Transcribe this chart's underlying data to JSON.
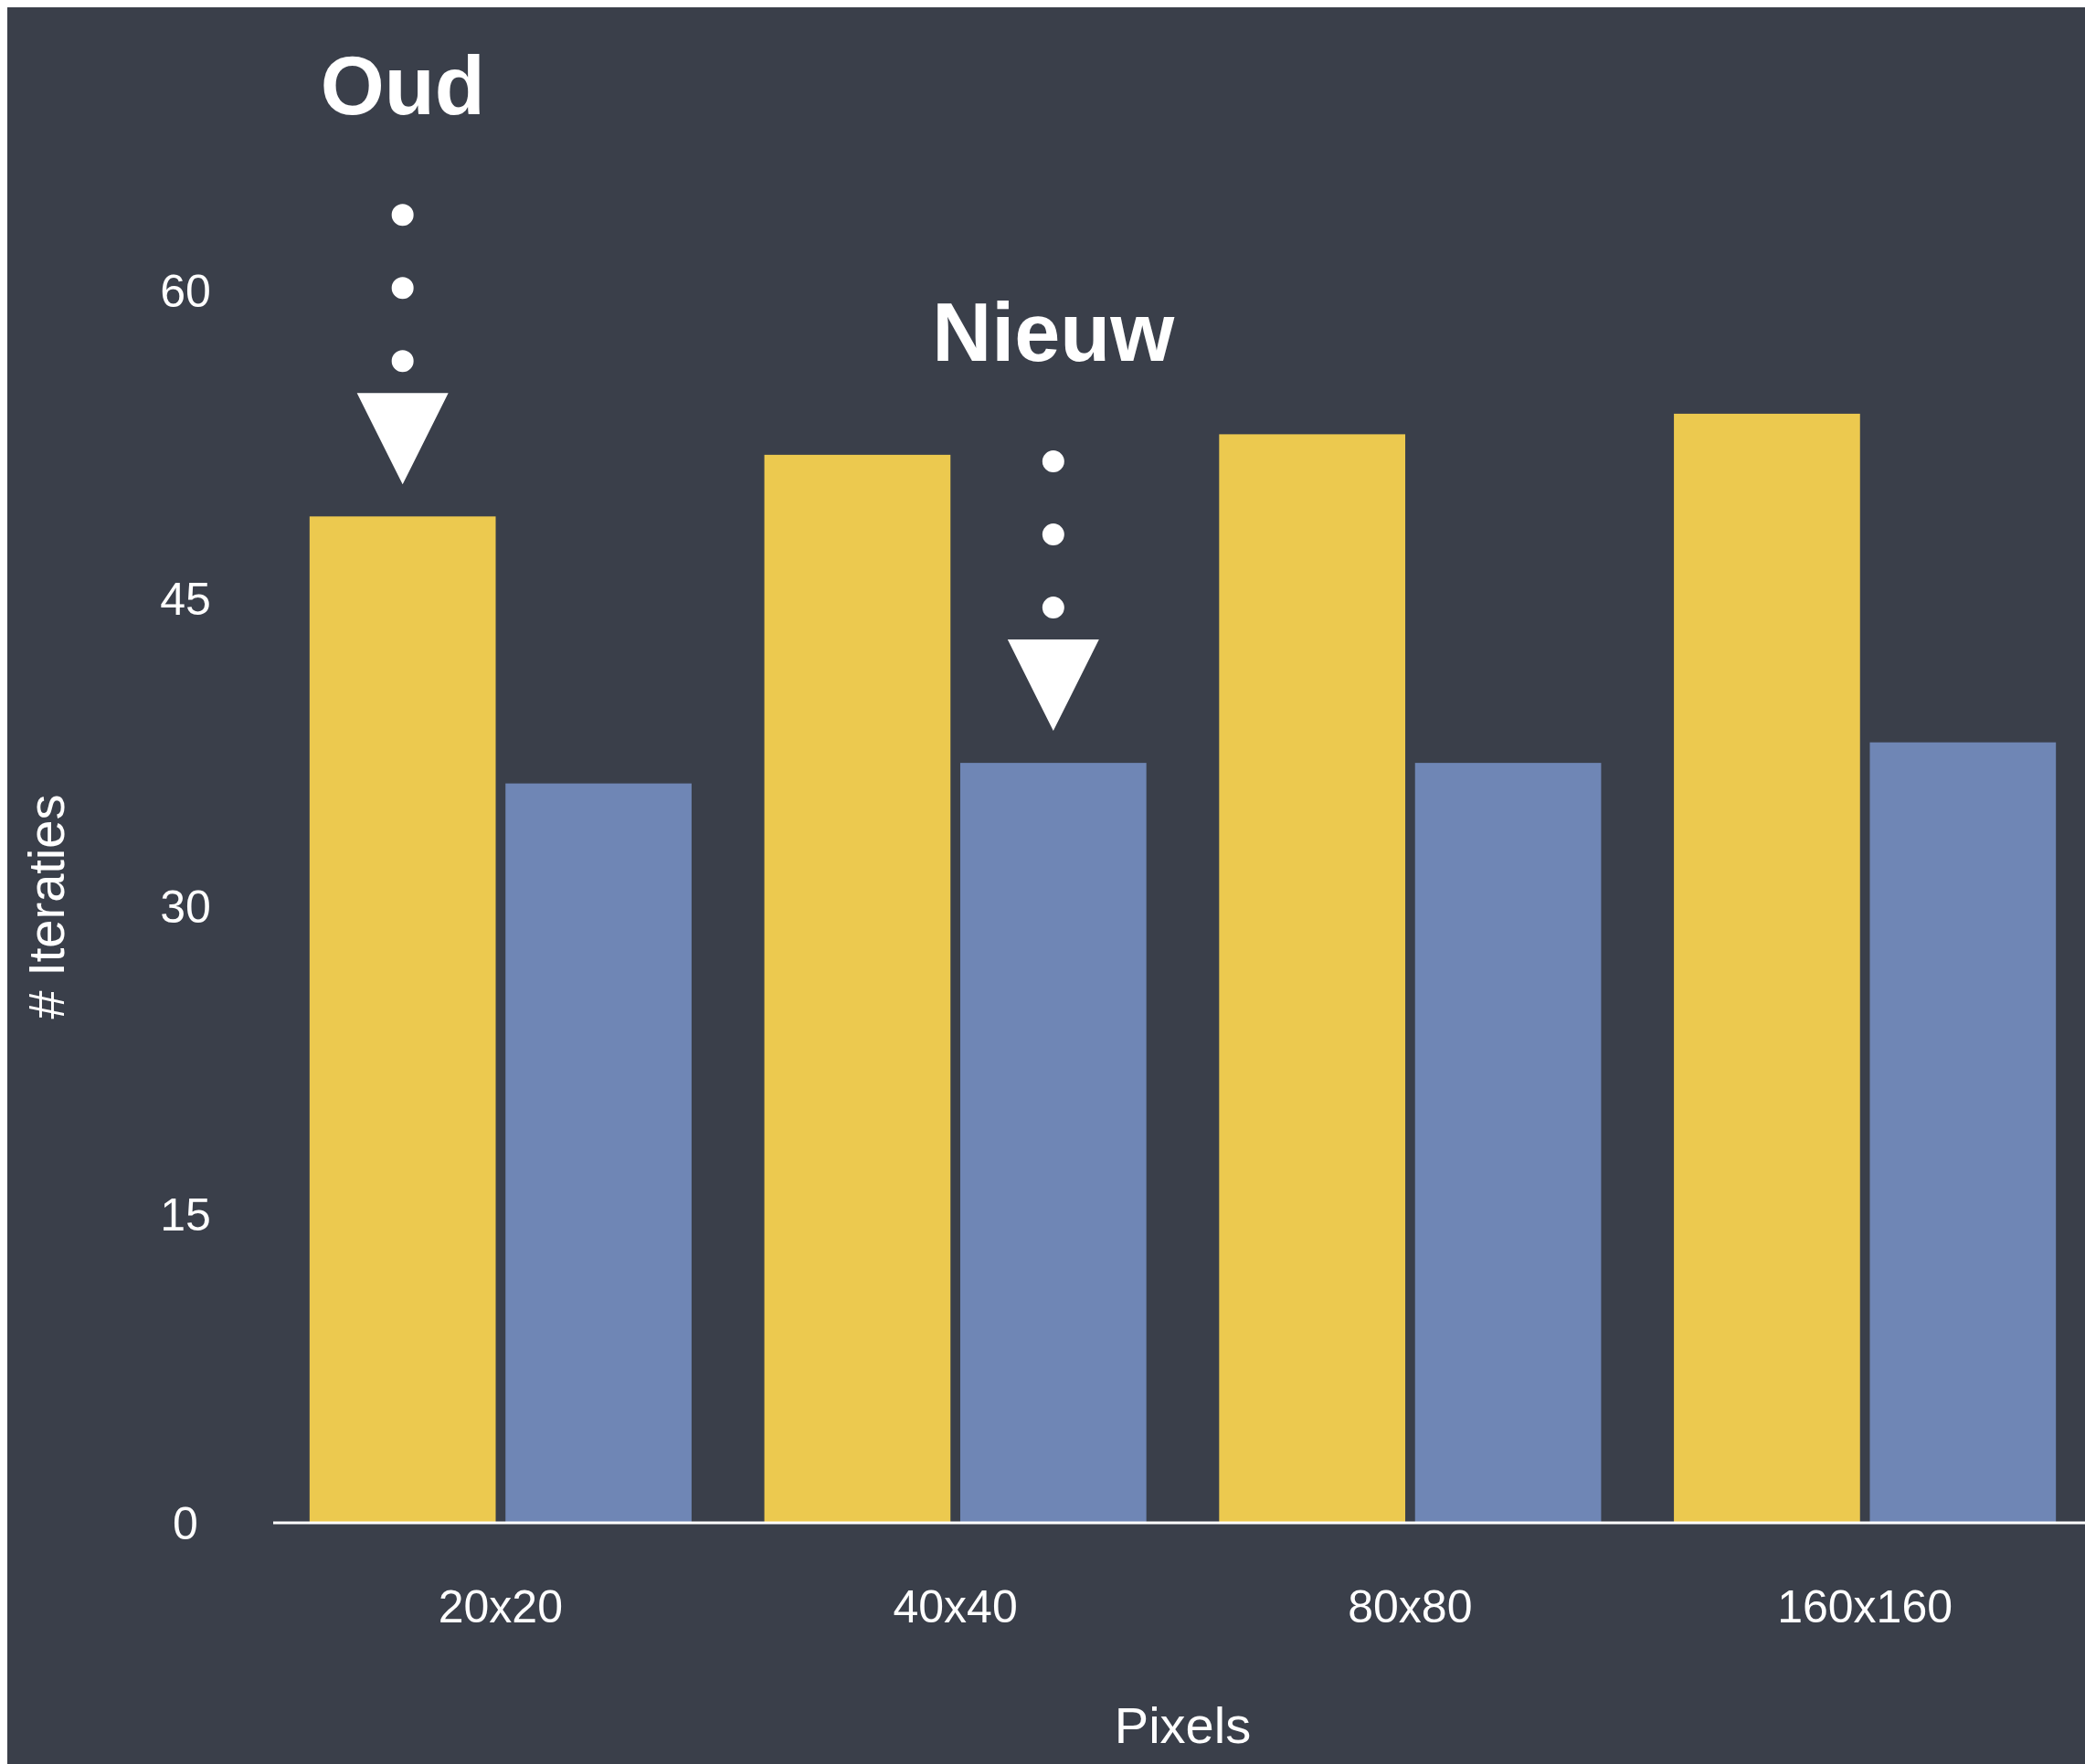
{
  "chart_data": {
    "type": "bar",
    "xlabel": "Pixels",
    "ylabel": "# Iteraties",
    "categories": [
      "20x20",
      "40x40",
      "80x80",
      "160x160"
    ],
    "series": [
      {
        "color": "#ecc94f",
        "values": [
          49,
          52,
          53,
          54
        ]
      },
      {
        "color": "#6f86b5",
        "values": [
          36,
          37,
          37,
          38
        ]
      }
    ],
    "annotations": [
      "Oud",
      "Nieuw"
    ],
    "ylim": [
      0,
      60
    ],
    "yticks": [
      0,
      15,
      30,
      45,
      60
    ],
    "grid": false
  }
}
